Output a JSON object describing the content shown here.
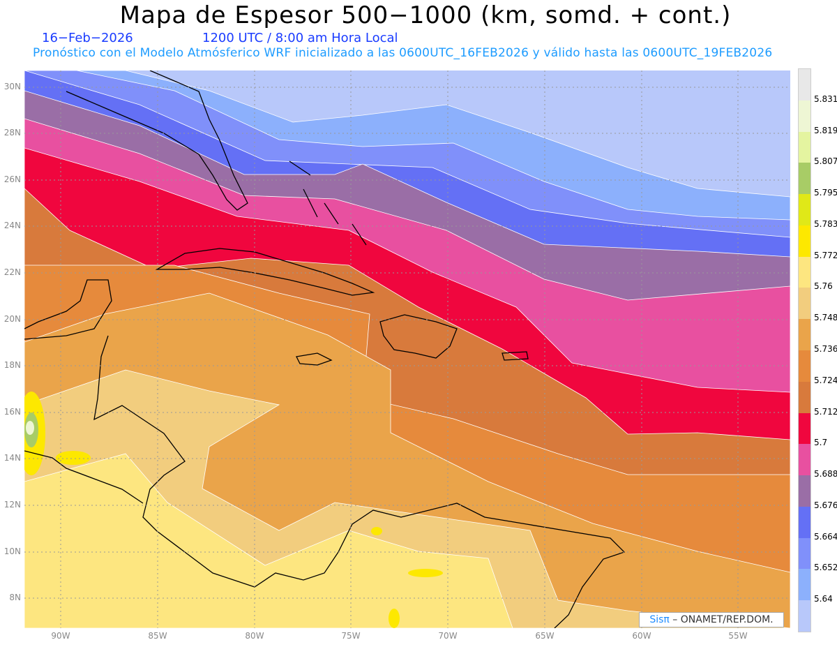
{
  "header": {
    "title": "Mapa de Espesor 500−1000 (km, somd. + cont.)",
    "date": "16−Feb−2026",
    "time": "1200 UTC / 8:00 am Hora Local",
    "description": "Pronóstico con el Modelo Atmósferico WRF inicializado a las 0600UTC_16FEB2026 y válido hasta las  0600UTC_19FEB2026"
  },
  "axes": {
    "lat_labels": [
      "30N",
      "28N",
      "26N",
      "24N",
      "22N",
      "20N",
      "18N",
      "16N",
      "14N",
      "12N",
      "10N",
      "8N"
    ],
    "lon_labels": [
      "90W",
      "85W",
      "80W",
      "75W",
      "70W",
      "65W",
      "60W",
      "55W"
    ]
  },
  "colorbar": {
    "labels": [
      "5.831",
      "5.819",
      "5.807",
      "5.795",
      "5.783",
      "5.772",
      "5.76",
      "5.748",
      "5.736",
      "5.724",
      "5.712",
      "5.7",
      "5.688",
      "5.676",
      "5.664",
      "5.652",
      "5.64"
    ],
    "colors_top_to_bottom": [
      "#e8e8e8",
      "#eef6d4",
      "#e4f4a0",
      "#a8cc66",
      "#e0e818",
      "#fde800",
      "#fde680",
      "#f2cd7e",
      "#eaa44a",
      "#e68a3c",
      "#d87a3c",
      "#f0063e",
      "#e850a0",
      "#9a6ea6",
      "#6470f5",
      "#8090fa",
      "#8cb0fc",
      "#b8c8fa"
    ]
  },
  "credit": {
    "brand": "Sisπ",
    "text": " – ONAMET/REP.DOM."
  }
}
